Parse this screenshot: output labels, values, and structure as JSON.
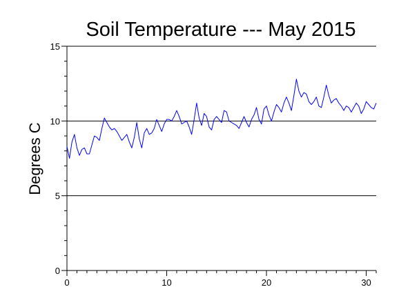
{
  "chart_data": {
    "type": "line",
    "title": "Soil Temperature --- May 2015",
    "xlabel": "",
    "ylabel": "Degrees C",
    "xlim": [
      0,
      31
    ],
    "ylim": [
      0,
      15
    ],
    "x_ticks": [
      0,
      10,
      20,
      30
    ],
    "y_ticks": [
      0,
      5,
      10,
      15
    ],
    "grid_y": [
      5,
      10,
      15
    ],
    "series_color": "#0000ff",
    "series": [
      {
        "x": [
          0.0,
          0.25,
          0.5,
          0.75,
          1.0,
          1.25,
          1.5,
          1.75,
          2.0,
          2.25,
          2.5,
          2.75,
          3.0,
          3.25,
          3.5,
          3.75,
          4.0,
          4.25,
          4.5,
          4.75,
          5.0,
          5.25,
          5.5,
          5.75,
          6.0,
          6.25,
          6.5,
          6.75,
          7.0,
          7.25,
          7.5,
          7.75,
          8.0,
          8.25,
          8.5,
          8.75,
          9.0,
          9.25,
          9.5,
          9.75,
          10.0,
          10.25,
          10.5,
          10.75,
          11.0,
          11.25,
          11.5,
          11.75,
          12.0,
          12.25,
          12.5,
          12.75,
          13.0,
          13.25,
          13.5,
          13.75,
          14.0,
          14.25,
          14.5,
          14.75,
          15.0,
          15.25,
          15.5,
          15.75,
          16.0,
          16.25,
          16.5,
          16.75,
          17.0,
          17.25,
          17.5,
          17.75,
          18.0,
          18.25,
          18.5,
          18.75,
          19.0,
          19.25,
          19.5,
          19.75,
          20.0,
          20.25,
          20.5,
          20.75,
          21.0,
          21.25,
          21.5,
          21.75,
          22.0,
          22.25,
          22.5,
          22.75,
          23.0,
          23.25,
          23.5,
          23.75,
          24.0,
          24.25,
          24.5,
          24.75,
          25.0,
          25.25,
          25.5,
          25.75,
          26.0,
          26.25,
          26.5,
          26.75,
          27.0,
          27.25,
          27.5,
          27.75,
          28.0,
          28.25,
          28.5,
          28.75,
          29.0,
          29.25,
          29.5,
          29.75,
          30.0,
          30.25,
          30.5,
          30.75,
          31.0
        ],
        "values": [
          8.3,
          7.5,
          8.6,
          9.1,
          8.2,
          7.7,
          8.1,
          8.2,
          7.8,
          7.8,
          8.4,
          9.0,
          8.9,
          8.7,
          9.5,
          10.2,
          9.9,
          9.6,
          9.4,
          9.5,
          9.3,
          9.0,
          8.7,
          8.9,
          9.1,
          8.6,
          8.2,
          8.9,
          9.9,
          8.8,
          8.2,
          9.2,
          9.5,
          9.1,
          9.2,
          9.5,
          10.1,
          9.7,
          9.3,
          9.8,
          10.1,
          10.1,
          10.0,
          10.3,
          10.7,
          10.3,
          9.8,
          9.9,
          10.0,
          9.6,
          9.1,
          10.1,
          11.2,
          10.2,
          9.7,
          10.5,
          10.3,
          9.6,
          9.4,
          10.1,
          10.3,
          10.1,
          9.9,
          10.7,
          10.6,
          10.0,
          9.9,
          9.8,
          9.7,
          9.5,
          9.9,
          10.3,
          9.9,
          9.6,
          10.1,
          10.4,
          10.9,
          10.1,
          9.8,
          10.8,
          11.0,
          10.4,
          10.0,
          10.6,
          11.1,
          10.9,
          10.6,
          11.2,
          11.6,
          11.2,
          10.7,
          11.7,
          12.8,
          12.0,
          11.6,
          11.9,
          11.8,
          11.3,
          11.1,
          11.3,
          11.6,
          11.0,
          10.9,
          11.6,
          12.4,
          11.7,
          11.2,
          11.4,
          11.5,
          11.2,
          11.0,
          10.7,
          11.0,
          10.9,
          10.6,
          10.9,
          11.2,
          11.0,
          10.5,
          10.8,
          11.3,
          11.1,
          10.9,
          10.8,
          11.2
        ]
      }
    ]
  }
}
